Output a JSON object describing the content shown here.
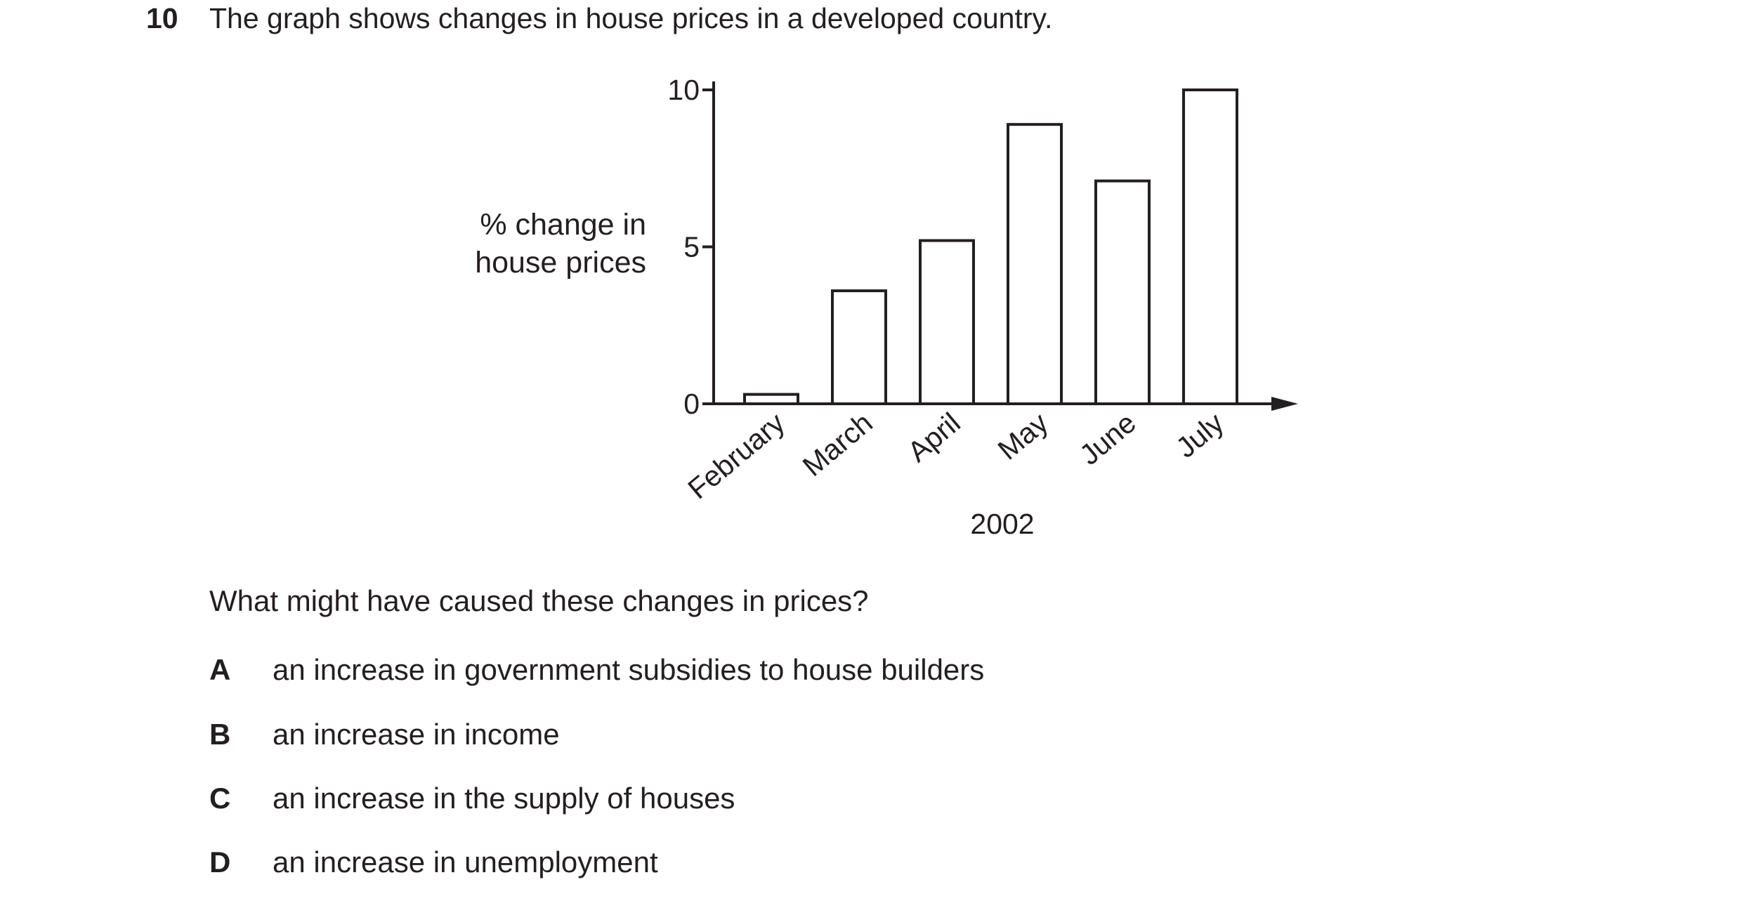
{
  "question": {
    "number": "10",
    "text": "The graph shows changes in house prices in a developed country.",
    "prompt": "What might have caused these changes in prices?",
    "options": [
      {
        "letter": "A",
        "text": "an increase in government subsidies to house builders"
      },
      {
        "letter": "B",
        "text": "an increase in income"
      },
      {
        "letter": "C",
        "text": "an increase in the supply of houses"
      },
      {
        "letter": "D",
        "text": "an increase in unemployment"
      }
    ]
  },
  "chart_data": {
    "type": "bar",
    "title": "",
    "ylabel_lines": [
      "% change in",
      "house prices"
    ],
    "xlabel": "2002",
    "categories": [
      "February",
      "March",
      "April",
      "May",
      "June",
      "July"
    ],
    "values": [
      0.3,
      3.6,
      5.2,
      8.9,
      7.1,
      10
    ],
    "ylim": [
      0,
      10
    ],
    "yticks": [
      "0",
      "5",
      "10"
    ],
    "ytick_values": [
      0,
      5,
      10
    ],
    "bar_fill": "#ffffff",
    "bar_stroke": "#231f20",
    "grid": false,
    "legend": "none"
  }
}
